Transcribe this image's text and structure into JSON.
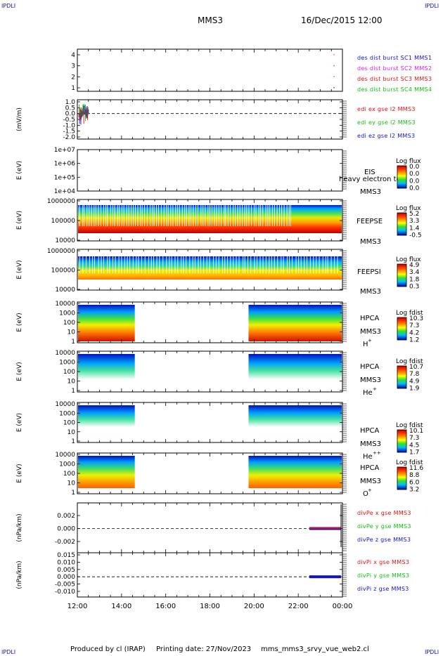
{
  "header": {
    "corner_tl": "IPDLI",
    "corner_tr": "IPDLI",
    "corner_bl": "IPDLI",
    "corner_br": "IPDLI",
    "spacecraft": "MMS3",
    "datetime": "16/Dec/2015 12:00"
  },
  "footer": {
    "produced_by": "Produced by cl (IRAP)",
    "printing_date": "Printing date: 27/Nov/2023",
    "script_name": "mms_mms3_srvy_vue_web2.cl"
  },
  "colors": {
    "blue": "#1010d0",
    "magenta": "#e020e0",
    "red": "#e01010",
    "green": "#10c010"
  },
  "chart_data": [
    {
      "type": "scatter",
      "id": "burst",
      "yticks": [
        "4",
        "3",
        "2",
        "1"
      ],
      "ylim": [
        0.5,
        4.5
      ],
      "legend": [
        "des dist burst SC1 MMS1",
        "des dist burst SC2 MMS2",
        "des dist burst SC3 MMS3",
        "des dist burst SC4 MMS4"
      ],
      "points": [
        {
          "x": 23.6,
          "y": 4
        },
        {
          "x": 23.6,
          "y": 3
        },
        {
          "x": 23.6,
          "y": 2
        },
        {
          "x": 23.6,
          "y": 1
        }
      ]
    },
    {
      "type": "line",
      "id": "edi",
      "ylabel": "(mV/m)",
      "yticks": [
        "1.0",
        "0.5",
        "0.0",
        "-0.5",
        "-1.0",
        "-1.5",
        "-2.0"
      ],
      "ylim": [
        -2.0,
        1.0
      ],
      "legend": [
        "edi ex gse l2 MMS3",
        "edi ey gse l2 MMS3",
        "edi ez gse l2 MMS3"
      ]
    },
    {
      "type": "heatmap",
      "id": "eis",
      "ylabel": "E (eV)",
      "yticks": [
        "1e+07",
        "1e+06",
        "1e+05",
        "1e+04"
      ],
      "instrument": [
        "EIS",
        "MMS3"
      ],
      "overlay": "heavy electron to",
      "colorbar_title": "Log flux",
      "colorbar_ticks": [
        "0.0",
        "0.0",
        "0.0",
        "0.0"
      ]
    },
    {
      "type": "heatmap",
      "id": "feepse",
      "ylabel": "E (eV)",
      "yticks": [
        "1000000",
        "100000",
        "10000"
      ],
      "instrument": [
        "FEEPSE",
        "MMS3"
      ],
      "colorbar_title": "Log flux",
      "colorbar_ticks": [
        "5.2",
        "3.3",
        "1.4",
        "-0.5"
      ]
    },
    {
      "type": "heatmap",
      "id": "feepsi",
      "ylabel": "E (eV)",
      "yticks": [
        "1000000",
        "100000",
        "10000"
      ],
      "instrument": [
        "FEEPSI",
        "MMS3"
      ],
      "colorbar_title": "Log flux",
      "colorbar_ticks": [
        "4.9",
        "3.4",
        "1.8",
        "0.3"
      ]
    },
    {
      "type": "heatmap",
      "id": "hpca_h",
      "ylabel": "E (eV)",
      "yticks": [
        "10000",
        "1000",
        "100",
        "10",
        "1"
      ],
      "instrument": [
        "HPCA",
        "MMS3"
      ],
      "species": "H",
      "species_sup": "+",
      "colorbar_title": "Log fdist",
      "colorbar_ticks": [
        "10.3",
        "7.3",
        "4.2",
        "1.2"
      ],
      "data_gap": [
        14.6,
        19.75
      ]
    },
    {
      "type": "heatmap",
      "id": "hpca_he",
      "ylabel": "E (eV)",
      "yticks": [
        "10000",
        "1000",
        "100",
        "10",
        "1"
      ],
      "instrument": [
        "HPCA",
        "MMS3"
      ],
      "species": "He",
      "species_sup": "+",
      "colorbar_title": "Log fdist",
      "colorbar_ticks": [
        "10.7",
        "7.8",
        "4.9",
        "1.9"
      ],
      "data_gap": [
        14.6,
        19.75
      ]
    },
    {
      "type": "heatmap",
      "id": "hpca_hepp",
      "ylabel": "E (eV)",
      "yticks": [
        "10000",
        "1000",
        "100",
        "10",
        "1"
      ],
      "instrument": [
        "HPCA",
        "MMS3"
      ],
      "species": "He",
      "species_sup": "++",
      "colorbar_title": "Log fdist",
      "colorbar_ticks": [
        "10.1",
        "7.3",
        "4.5",
        "1.7"
      ],
      "data_gap": [
        14.6,
        19.75
      ]
    },
    {
      "type": "heatmap",
      "id": "hpca_o",
      "ylabel": "E (eV)",
      "yticks": [
        "10000",
        "1000",
        "100",
        "10",
        "1"
      ],
      "instrument": [
        "HPCA",
        "MMS3"
      ],
      "species": "O",
      "species_sup": "+",
      "colorbar_title": "Log fdist",
      "colorbar_ticks": [
        "11.6",
        "8.8",
        "6.0",
        "3.2"
      ],
      "data_gap": [
        14.6,
        19.75
      ]
    },
    {
      "type": "line",
      "id": "divpe",
      "ylabel": "(nPa/km)",
      "yticks": [
        "0.002",
        "0.000",
        "-0.002"
      ],
      "ylim": [
        -0.003,
        0.003
      ],
      "legend": [
        "divPe x gse MMS3",
        "divPe y gse MMS3",
        "divPe z gse MMS3"
      ],
      "data_range": [
        22.5,
        24.0
      ]
    },
    {
      "type": "line",
      "id": "divpi",
      "ylabel": "(nPa/km)",
      "yticks": [
        "0.015",
        "0.010",
        "0.005",
        "0.000",
        "-0.005",
        "-0.010"
      ],
      "ylim": [
        -0.012,
        0.016
      ],
      "legend": [
        "divPi x gse MMS3",
        "divPi y gse MMS3",
        "divPi z gse MMS3"
      ],
      "data_range": [
        22.5,
        24.0
      ]
    }
  ],
  "x_axis": {
    "ticks": [
      "12:00",
      "14:00",
      "16:00",
      "18:00",
      "20:00",
      "22:00",
      "00:00"
    ],
    "xlim": [
      12,
      24
    ]
  }
}
